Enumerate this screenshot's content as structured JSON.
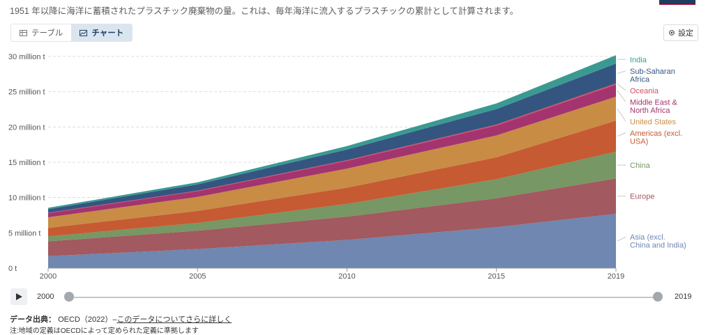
{
  "header": {
    "subtitle": "1951 年以降に海洋に蓄積されたプラスチック廃棄物の量。これは、毎年海洋に流入するプラスチックの累計として計算されます。"
  },
  "tabs": [
    {
      "label": "テーブル",
      "icon": "table-icon"
    },
    {
      "label": "チャート",
      "icon": "chart-icon",
      "active": true
    }
  ],
  "settings_label": "設定",
  "timeline": {
    "start": "2000",
    "end": "2019"
  },
  "source": {
    "prefix": "データ出典：",
    "text": "OECD（2022）–",
    "link": "このデータについてさらに詳しく"
  },
  "footnote_partial": "注:地域の定義はOECDによって定められた定義に準拠します",
  "chart_data": {
    "type": "area",
    "stacked": true,
    "x": [
      2000,
      2005,
      2010,
      2015,
      2019
    ],
    "xlim": [
      2000,
      2019
    ],
    "ylim": [
      0,
      30000000
    ],
    "x_ticks": [
      "2000",
      "2005",
      "2010",
      "2015",
      "2019"
    ],
    "y_ticks": [
      {
        "value": 0,
        "label": "0 t"
      },
      {
        "value": 5000000,
        "label": "5 million t"
      },
      {
        "value": 10000000,
        "label": "10 million t"
      },
      {
        "value": 15000000,
        "label": "15 million t"
      },
      {
        "value": 20000000,
        "label": "20 million t"
      },
      {
        "value": 25000000,
        "label": "25 million t"
      },
      {
        "value": 30000000,
        "label": "30 million t"
      }
    ],
    "grid": true,
    "legend": "right",
    "series": [
      {
        "name": "Asia (excl. China and India)",
        "color": "#6f87b1",
        "values": [
          1700000,
          2700000,
          4000000,
          5800000,
          7700000
        ]
      },
      {
        "name": "Europe",
        "color": "#a2595f",
        "values": [
          2100000,
          2600000,
          3300000,
          4100000,
          5000000
        ]
      },
      {
        "name": "China",
        "color": "#779764",
        "values": [
          700000,
          1100000,
          1800000,
          2700000,
          3800000
        ]
      },
      {
        "name": "Americas (excl. USA)",
        "color": "#c65a33",
        "values": [
          1200000,
          1700000,
          2300000,
          3100000,
          4400000
        ]
      },
      {
        "name": "United States",
        "color": "#c88c45",
        "values": [
          1500000,
          2000000,
          2700000,
          3100000,
          3400000
        ]
      },
      {
        "name": "Middle East & North Africa",
        "color": "#a3346f",
        "values": [
          600000,
          800000,
          1100000,
          1400000,
          1700000
        ]
      },
      {
        "name": "Oceania",
        "color": "#d94c64",
        "values": [
          50000,
          70000,
          100000,
          140000,
          180000
        ]
      },
      {
        "name": "Sub-Saharan Africa",
        "color": "#355581",
        "values": [
          500000,
          900000,
          1500000,
          2200000,
          2800000
        ]
      },
      {
        "name": "India",
        "color": "#3a9a91",
        "values": [
          200000,
          300000,
          500000,
          800000,
          1200000
        ]
      }
    ]
  }
}
